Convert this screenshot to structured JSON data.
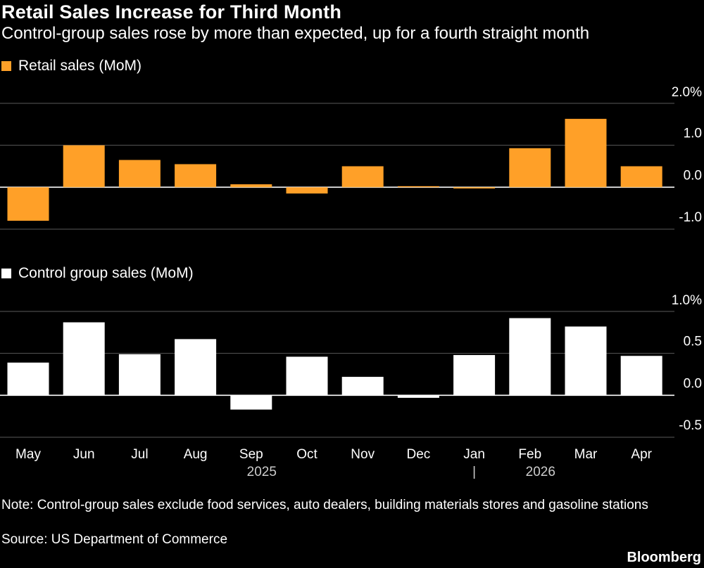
{
  "title": "Retail Sales Increase for Third Month",
  "subtitle": "Control-group sales rose by more than expected, up for a fourth straight month",
  "note": "Note: Control-group sales exclude food services, auto dealers, building materials stores and gasoline stations",
  "source": "Source: US Department of Commerce",
  "brand": "Bloomberg",
  "colors": {
    "background": "#000000",
    "retail": "#ffa028",
    "control": "#ffffff",
    "grid": "#5a5a5a",
    "text": "#ffffff"
  },
  "chart_data": [
    {
      "type": "bar",
      "legend": "Retail sales (MoM)",
      "categories": [
        "May",
        "Jun",
        "Jul",
        "Aug",
        "Sep",
        "Oct",
        "Nov",
        "Dec",
        "Jan",
        "Feb",
        "Mar",
        "Apr"
      ],
      "values": [
        -0.8,
        1.0,
        0.65,
        0.55,
        0.07,
        -0.15,
        0.5,
        0.0,
        -0.03,
        0.93,
        1.63,
        0.5
      ],
      "yticks": [
        2.0,
        1.0,
        0.0,
        -1.0
      ],
      "ytick_labels": [
        "2.0%",
        "1.0",
        "0.0",
        "-1.0"
      ],
      "ylim": [
        -1.0,
        2.0
      ]
    },
    {
      "type": "bar",
      "legend": "Control group sales (MoM)",
      "categories": [
        "May",
        "Jun",
        "Jul",
        "Aug",
        "Sep",
        "Oct",
        "Nov",
        "Dec",
        "Jan",
        "Feb",
        "Mar",
        "Apr"
      ],
      "values": [
        0.39,
        0.87,
        0.49,
        0.67,
        -0.17,
        0.46,
        0.22,
        -0.03,
        0.48,
        0.92,
        0.82,
        0.47
      ],
      "yticks": [
        1.0,
        0.5,
        0.0,
        -0.5
      ],
      "ytick_labels": [
        "1.0%",
        "0.5",
        "0.0",
        "-0.5"
      ],
      "ylim": [
        -0.5,
        1.0
      ]
    }
  ],
  "x_axis": {
    "months": [
      "May",
      "Jun",
      "Jul",
      "Aug",
      "Sep",
      "Oct",
      "Nov",
      "Dec",
      "Jan",
      "Feb",
      "Mar",
      "Apr"
    ],
    "years": [
      {
        "label": "2025",
        "under": "Sep"
      },
      {
        "label": "2026",
        "under": "Feb"
      }
    ],
    "year_divider": "|"
  }
}
